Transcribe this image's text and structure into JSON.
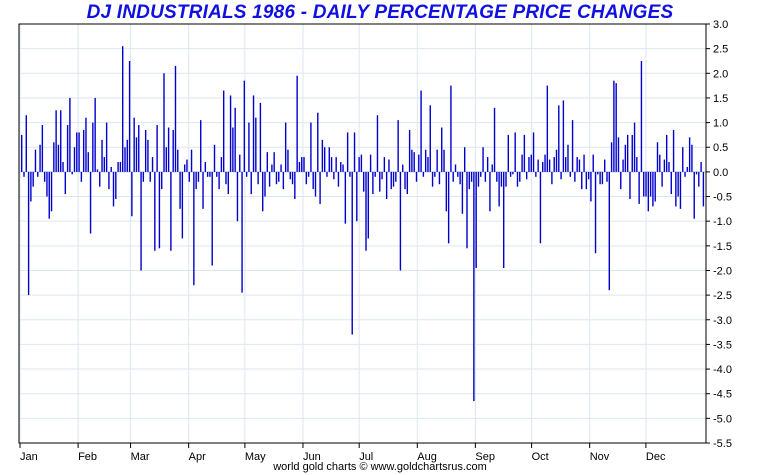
{
  "chart_data": {
    "type": "bar",
    "title": "DJ INDUSTRIALS 1986 - DAILY PERCENTAGE PRICE CHANGES",
    "xlabel": "",
    "ylabel": "",
    "ylim": [
      -5.5,
      3.0
    ],
    "yticks": [
      "3.0",
      "2.5",
      "2.0",
      "1.5",
      "1.0",
      "0.5",
      "0.0",
      "-0.5",
      "-1.0",
      "-1.5",
      "-2.0",
      "-2.5",
      "-3.0",
      "-3.5",
      "-4.0",
      "-4.5",
      "-5.0",
      "-5.5"
    ],
    "months": [
      "Jan",
      "Feb",
      "Mar",
      "Apr",
      "May",
      "Jun",
      "Jul",
      "Aug",
      "Sep",
      "Oct",
      "Nov",
      "Dec"
    ],
    "grid": true,
    "bar_color": "#0000cc",
    "values": [
      0.75,
      -0.1,
      1.15,
      -2.5,
      -0.6,
      -0.3,
      0.45,
      -0.1,
      0.55,
      0.95,
      -0.2,
      -0.5,
      -0.95,
      -0.8,
      0.6,
      1.25,
      0.55,
      1.25,
      0.2,
      -0.45,
      0.95,
      1.5,
      -0.05,
      0.5,
      0.8,
      0.8,
      -0.2,
      0.85,
      1.1,
      0.4,
      -1.25,
      1.0,
      1.5,
      0.05,
      -0.3,
      0.65,
      0.3,
      1.0,
      -0.35,
      0.1,
      -0.7,
      -0.55,
      0.2,
      0.2,
      2.55,
      0.5,
      0.65,
      2.25,
      -0.9,
      1.1,
      0.7,
      0.95,
      -2.0,
      -0.2,
      0.85,
      0.65,
      -0.2,
      0.3,
      -1.6,
      0.95,
      -1.55,
      -0.35,
      2.0,
      0.5,
      0.9,
      -1.6,
      0.85,
      2.15,
      0.45,
      -0.75,
      -1.35,
      0.15,
      0.25,
      -0.2,
      0.45,
      -2.3,
      -0.35,
      -0.2,
      1.05,
      -0.75,
      0.2,
      -0.1,
      -0.1,
      -1.9,
      0.55,
      -0.1,
      -0.35,
      0.3,
      1.65,
      -0.25,
      -0.45,
      1.55,
      0.9,
      1.3,
      -1.0,
      0.35,
      -2.45,
      1.85,
      -0.1,
      1.0,
      -0.45,
      1.55,
      1.1,
      -0.25,
      1.4,
      -0.8,
      -0.5,
      0.4,
      -0.3,
      0.15,
      0.4,
      -0.25,
      -0.2,
      0.15,
      -0.35,
      1.0,
      0.45,
      -0.15,
      -0.25,
      -0.55,
      1.95,
      0.2,
      0.3,
      0.3,
      -0.25,
      -0.1,
      1.0,
      -0.35,
      -0.5,
      1.2,
      -0.65,
      0.65,
      0.5,
      -0.1,
      0.5,
      0.3,
      -0.15,
      0.3,
      -0.3,
      0.2,
      0.15,
      -1.05,
      0.8,
      -0.1,
      -3.3,
      0.8,
      -1.0,
      0.3,
      0.35,
      -0.4,
      -1.6,
      -1.35,
      0.35,
      -0.45,
      -0.1,
      1.15,
      -0.4,
      -0.15,
      0.3,
      -0.55,
      0.25,
      -0.35,
      -0.3,
      -0.2,
      1.05,
      -2.0,
      0.15,
      -0.35,
      -0.45,
      0.85,
      0.45,
      0.4,
      -0.2,
      0.35,
      1.65,
      -0.1,
      0.45,
      0.3,
      1.35,
      -0.3,
      -0.1,
      0.45,
      -0.25,
      0.9,
      0.45,
      -0.8,
      -1.45,
      1.75,
      -0.2,
      0.15,
      -0.1,
      -0.25,
      -0.85,
      0.5,
      -1.55,
      -0.35,
      -0.2,
      -4.65,
      -1.95,
      -0.3,
      -0.1,
      0.5,
      -0.2,
      0.3,
      -0.8,
      0.15,
      1.3,
      -0.2,
      -0.7,
      -0.3,
      -1.95,
      -0.3,
      0.75,
      -0.1,
      -0.05,
      0.8,
      -0.3,
      -0.2,
      0.35,
      0.75,
      -0.15,
      0.3,
      0.35,
      0.8,
      -0.1,
      0.25,
      -1.45,
      0.2,
      0.35,
      1.75,
      0.25,
      -0.25,
      0.3,
      0.45,
      1.35,
      -0.15,
      1.45,
      0.3,
      0.55,
      -0.1,
      1.05,
      -0.2,
      0.3,
      0.25,
      -0.35,
      0.35,
      -0.35,
      -0.15,
      -0.6,
      0.35,
      -1.65,
      -0.05,
      -0.25,
      -0.25,
      0.25,
      -0.2,
      -2.4,
      0.6,
      1.85,
      1.8,
      0.7,
      -0.35,
      0.25,
      0.55,
      0.75,
      -0.55,
      0.75,
      1.0,
      0.3,
      -0.65,
      2.25,
      -0.5,
      -0.5,
      -0.8,
      -0.5,
      -0.7,
      -0.6,
      0.6,
      0.35,
      -0.3,
      0.25,
      0.75,
      0.2,
      -0.45,
      0.85,
      -0.7,
      -0.5,
      -0.75,
      0.5,
      -0.1,
      0.1,
      0.7,
      0.55,
      -0.95,
      -0.05,
      -0.3,
      0.2,
      -0.7
    ]
  },
  "footer": {
    "text": "world gold charts © www.goldchartsrus.com"
  }
}
